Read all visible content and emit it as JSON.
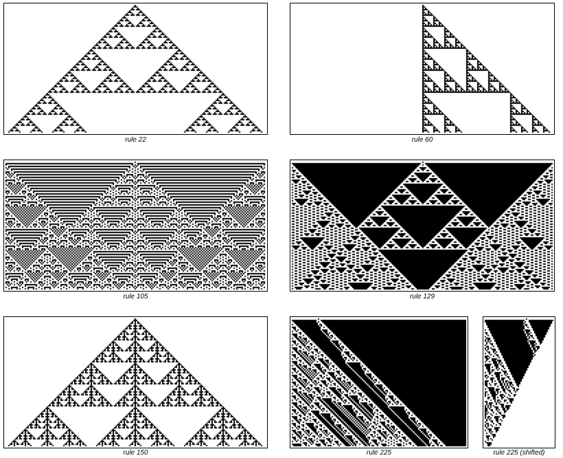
{
  "captions": {
    "rule22": "rule 22",
    "rule60": "rule 60",
    "rule105": "rule 105",
    "rule129": "rule 129",
    "rule150": "rule 150",
    "rule225": "rule 225",
    "rule225shifted": "rule 225 (shifted)"
  },
  "rules": {
    "rule22": 22,
    "rule60": 60,
    "rule105": 105,
    "rule129": 129,
    "rule150": 150,
    "rule225": 225,
    "rule225shifted": 225
  },
  "colors": {
    "on": "#000000",
    "off": "#ffffff"
  }
}
